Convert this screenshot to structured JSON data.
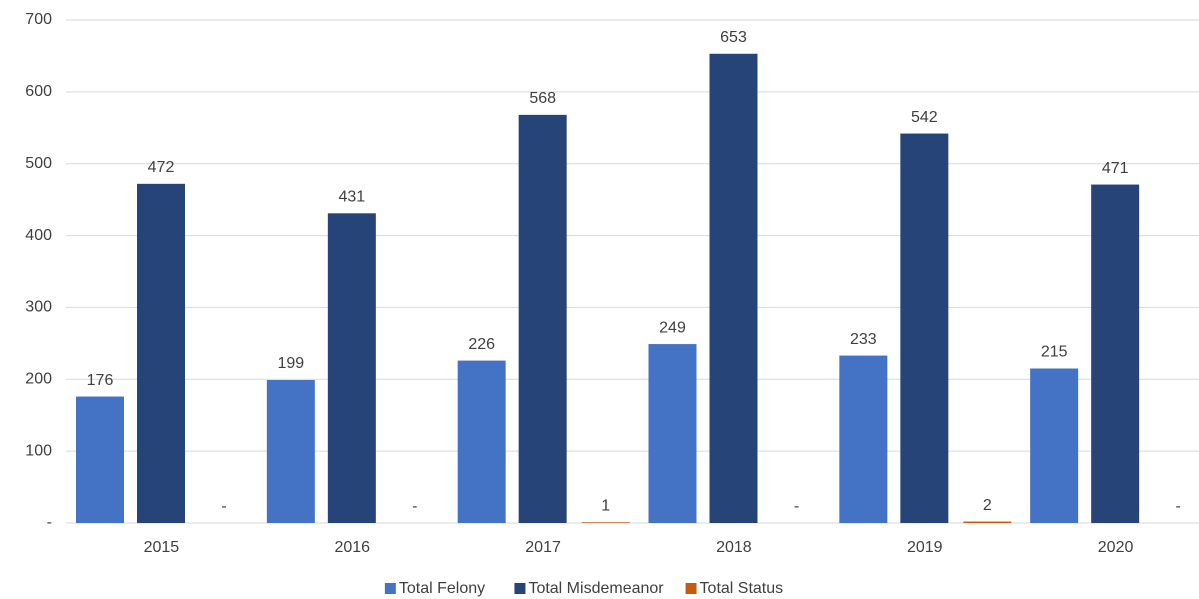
{
  "chart_data": {
    "type": "bar",
    "categories": [
      "2015",
      "2016",
      "2017",
      "2018",
      "2019",
      "2020"
    ],
    "series": [
      {
        "name": "Total Felony",
        "color": "#4472c4",
        "values": [
          176,
          199,
          226,
          249,
          233,
          215
        ]
      },
      {
        "name": "Total Misdemeanor",
        "color": "#264478",
        "values": [
          472,
          431,
          568,
          653,
          542,
          471
        ]
      },
      {
        "name": "Total Status",
        "color": "#c55a11",
        "values": [
          0,
          0,
          1,
          0,
          2,
          0
        ],
        "value_labels": [
          "-",
          "-",
          "1",
          "-",
          "2",
          "-"
        ]
      }
    ],
    "ylim": [
      0,
      700
    ],
    "yticks": [
      {
        "value": 0,
        "label": "-"
      },
      100,
      200,
      300,
      400,
      500,
      600,
      700
    ],
    "grid": true,
    "legend": "bottom"
  }
}
